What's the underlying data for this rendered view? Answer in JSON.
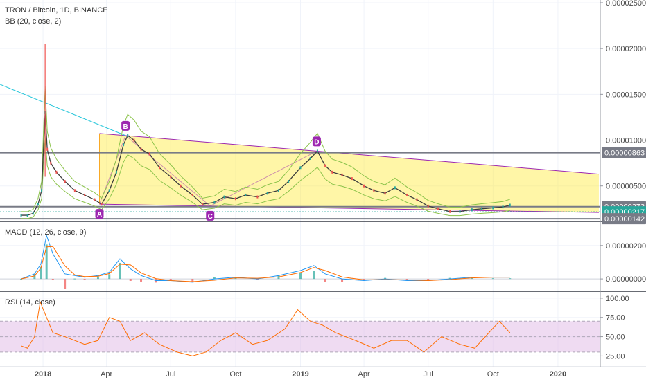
{
  "header": {
    "title": "TRON / Bitcoin, 1D, BINANCE",
    "bb_indicator": "BB (20, close, 2)",
    "macd_indicator": "MACD (12, 26, close, 9)",
    "rsi_indicator": "RSI (14, close)"
  },
  "colors": {
    "price_up": "#26a69a",
    "price_down": "#ef5350",
    "bollinger": "#3c3c3c",
    "bollinger_inner": "#8bc34a",
    "channel_fill": "#ffeb3b",
    "channel_border": "#9c27b0",
    "trend_line": "#26c6da",
    "horizontal_level": "#787b86",
    "macd_line": "#2196f3",
    "signal_line": "#ff6d00",
    "rsi_line": "#ff6d00",
    "rsi_band": "#e1bee7",
    "label_badge": "#9c27b0",
    "last_price_badge": "#26a69a",
    "level_badge": "#787b86"
  },
  "chart_data": [
    {
      "type": "line",
      "title": "TRON / Bitcoin, 1D, BINANCE",
      "subtitle": "BB (20, close, 2)",
      "x_axis": [
        "2018",
        "Apr",
        "Jul",
        "Oct",
        "2019",
        "Apr",
        "Jul",
        "Oct",
        "2020"
      ],
      "y_ticks": [
        "0.00002500",
        "0.00002000",
        "0.00001500",
        "0.00001000",
        "0.00000500"
      ],
      "ylim": [
        1.2e-06,
        2.53e-05
      ],
      "series": [
        {
          "x": [
            "2017-12-01",
            "2017-12-10",
            "2017-12-18",
            "2017-12-25",
            "2017-12-30",
            "2018-01-04",
            "2018-01-07",
            "2018-01-12",
            "2018-01-20",
            "2018-02-01",
            "2018-02-15",
            "2018-03-01",
            "2018-03-15",
            "2018-03-25",
            "2018-04-05",
            "2018-04-15",
            "2018-04-25",
            "2018-05-01",
            "2018-05-10",
            "2018-05-20",
            "2018-06-01",
            "2018-06-15",
            "2018-07-01",
            "2018-07-15",
            "2018-08-01",
            "2018-08-15",
            "2018-09-01",
            "2018-09-15",
            "2018-10-01",
            "2018-10-15",
            "2018-11-01",
            "2018-11-15",
            "2018-12-01",
            "2018-12-15",
            "2019-01-01",
            "2019-01-15",
            "2019-01-25",
            "2019-02-05",
            "2019-02-15",
            "2019-03-01",
            "2019-03-15",
            "2019-04-01",
            "2019-04-15",
            "2019-05-01",
            "2019-05-15",
            "2019-06-01",
            "2019-06-15",
            "2019-07-01",
            "2019-07-15",
            "2019-08-01",
            "2019-08-15",
            "2019-09-01",
            "2019-09-15",
            "2019-10-01",
            "2019-10-15",
            "2019-10-25"
          ],
          "values": [
            1.8e-06,
            1.8e-06,
            2e-06,
            3e-06,
            4.5e-06,
            1.3e-05,
            9e-06,
            7.5e-06,
            6.5e-06,
            5.5e-06,
            4.5e-06,
            4e-06,
            3.5e-06,
            3e-06,
            4.5e-06,
            6.5e-06,
            9.5e-06,
            1.05e-05,
            1e-05,
            9e-06,
            8.5e-06,
            7e-06,
            6e-06,
            5e-06,
            4e-06,
            3e-06,
            3.2e-06,
            3.8e-06,
            3.6e-06,
            4e-06,
            3.8e-06,
            4.2e-06,
            4.5e-06,
            5.5e-06,
            7e-06,
            8e-06,
            8.8e-06,
            7.2e-06,
            6.5e-06,
            6.2e-06,
            5.8e-06,
            5e-06,
            4.5e-06,
            4.2e-06,
            4.8e-06,
            4e-06,
            3.5e-06,
            2.8e-06,
            2.5e-06,
            2.2e-06,
            2.2e-06,
            2.4e-06,
            2.5e-06,
            2.6e-06,
            2.7e-06,
            2.9e-06
          ]
        }
      ],
      "chart_pattern": {
        "points": [
          {
            "label": "A",
            "x": "2018-03-22",
            "value": 3e-06
          },
          {
            "label": "B",
            "x": "2018-04-28",
            "value": 1.05e-05
          },
          {
            "label": "C",
            "x": "2018-08-26",
            "value": 2.8e-06
          },
          {
            "label": "D",
            "x": "2019-01-24",
            "value": 8.8e-06
          }
        ]
      },
      "horizontal_levels": [
        {
          "label": "0.00000863",
          "value": 8.63e-06,
          "color": "#787b86"
        },
        {
          "label": "0.00000273",
          "value": 2.73e-06,
          "color": "#787b86"
        },
        {
          "label": "0.00000217",
          "value": 2.17e-06,
          "color": "#26a69a"
        },
        {
          "label": "0.00000142",
          "value": 1.42e-06,
          "color": "#787b86"
        }
      ]
    },
    {
      "type": "line",
      "title": "MACD (12, 26, close, 9)",
      "y_ticks": [
        "0.00000200",
        "0.00000000"
      ],
      "ylim": [
        -7e-07,
        3.4e-06
      ],
      "series": [
        {
          "x": [
            "2017-12-01",
            "2017-12-20",
            "2017-12-29",
            "2018-01-06",
            "2018-01-15",
            "2018-02-01",
            "2018-02-15",
            "2018-03-01",
            "2018-03-20",
            "2018-04-05",
            "2018-04-20",
            "2018-05-05",
            "2018-05-20",
            "2018-06-10",
            "2018-07-01",
            "2018-08-01",
            "2018-09-01",
            "2018-10-01",
            "2018-11-01",
            "2018-12-01",
            "2019-01-01",
            "2019-01-20",
            "2019-02-05",
            "2019-03-01",
            "2019-04-01",
            "2019-05-01",
            "2019-06-01",
            "2019-07-01",
            "2019-08-01",
            "2019-09-01",
            "2019-10-01",
            "2019-10-25"
          ],
          "values": [
            0.0,
            3e-07,
            9e-07,
            2.6e-06,
            1.5e-06,
            3e-07,
            2e-07,
            1e-07,
            2e-07,
            4e-07,
            1.2e-06,
            6e-07,
            2e-07,
            -1e-07,
            -1e-07,
            -2e-07,
            0.0,
            1e-07,
            0.0,
            2e-07,
            5e-07,
            8e-07,
            3e-07,
            0.0,
            -1e-07,
            0.0,
            -1e-07,
            -1e-07,
            0.0,
            1e-07,
            1e-07,
            1e-07
          ]
        }
      ]
    },
    {
      "type": "line",
      "title": "RSI (14, close)",
      "y_ticks": [
        "100.00",
        "75.00",
        "50.00",
        "25.00"
      ],
      "ylim": [
        11.0,
        108.0
      ],
      "band": [
        30,
        70
      ],
      "series": [
        {
          "x": [
            "2017-12-01",
            "2017-12-10",
            "2017-12-20",
            "2017-12-28",
            "2018-01-06",
            "2018-01-15",
            "2018-02-01",
            "2018-03-01",
            "2018-03-20",
            "2018-04-05",
            "2018-04-20",
            "2018-05-05",
            "2018-05-25",
            "2018-06-15",
            "2018-07-10",
            "2018-08-01",
            "2018-08-20",
            "2018-09-10",
            "2018-10-01",
            "2018-10-25",
            "2018-11-15",
            "2018-12-10",
            "2018-12-28",
            "2019-01-15",
            "2019-02-01",
            "2019-02-20",
            "2019-03-20",
            "2019-04-15",
            "2019-05-10",
            "2019-06-01",
            "2019-06-25",
            "2019-07-20",
            "2019-08-15",
            "2019-09-05",
            "2019-09-25",
            "2019-10-10",
            "2019-10-25"
          ],
          "values": [
            38,
            35,
            50,
            95,
            75,
            55,
            50,
            40,
            45,
            75,
            70,
            45,
            55,
            40,
            30,
            25,
            30,
            45,
            55,
            40,
            45,
            60,
            85,
            70,
            65,
            55,
            45,
            35,
            45,
            45,
            30,
            50,
            40,
            35,
            55,
            70,
            55
          ]
        }
      ]
    }
  ]
}
